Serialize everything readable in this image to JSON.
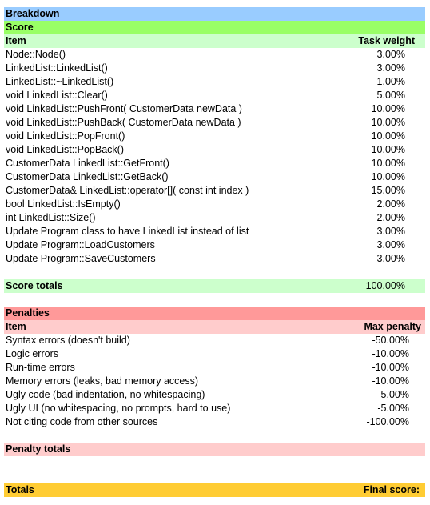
{
  "breakdown_title": "Breakdown",
  "score": {
    "title": "Score",
    "header": {
      "item": "Item",
      "weight": "Task weight"
    },
    "rows": [
      {
        "item": "Node::Node()",
        "weight": "3.00%"
      },
      {
        "item": "LinkedList::LinkedList()",
        "weight": "3.00%"
      },
      {
        "item": "LinkedList::~LinkedList()",
        "weight": "1.00%"
      },
      {
        "item": "void LinkedList::Clear()",
        "weight": "5.00%"
      },
      {
        "item": "void LinkedList::PushFront( CustomerData newData )",
        "weight": "10.00%"
      },
      {
        "item": "void LinkedList::PushBack( CustomerData newData )",
        "weight": "10.00%"
      },
      {
        "item": "void LinkedList::PopFront()",
        "weight": "10.00%"
      },
      {
        "item": "void LinkedList::PopBack()",
        "weight": "10.00%"
      },
      {
        "item": "CustomerData LinkedList::GetFront()",
        "weight": "10.00%"
      },
      {
        "item": "CustomerData LinkedList::GetBack()",
        "weight": "10.00%"
      },
      {
        "item": "CustomerData& LinkedList::operator[]( const int index )",
        "weight": "15.00%"
      },
      {
        "item": "bool LinkedList::IsEmpty()",
        "weight": "2.00%"
      },
      {
        "item": "int LinkedList::Size()",
        "weight": "2.00%"
      },
      {
        "item": "Update Program class to have LinkedList instead of list",
        "weight": "3.00%"
      },
      {
        "item": "Update Program::LoadCustomers",
        "weight": "3.00%"
      },
      {
        "item": "Update Program::SaveCustomers",
        "weight": "3.00%"
      }
    ],
    "totals_label": "Score totals",
    "totals_value": "100.00%"
  },
  "penalties": {
    "title": "Penalties",
    "header": {
      "item": "Item",
      "max": "Max penalty"
    },
    "rows": [
      {
        "item": "Syntax errors (doesn't build)",
        "max": "-50.00%"
      },
      {
        "item": "Logic errors",
        "max": "-10.00%"
      },
      {
        "item": "Run-time errors",
        "max": "-10.00%"
      },
      {
        "item": "Memory errors (leaks, bad memory access)",
        "max": "-10.00%"
      },
      {
        "item": "Ugly code (bad indentation, no whitespacing)",
        "max": "-5.00%"
      },
      {
        "item": "Ugly UI (no whitespacing, no prompts, hard to use)",
        "max": "-5.00%"
      },
      {
        "item": "Not citing code from other sources",
        "max": "-100.00%"
      }
    ],
    "totals_label": "Penalty totals"
  },
  "totals": {
    "label": "Totals",
    "final_score_label": "Final score:"
  },
  "colors": {
    "breakdown": "#99ccff",
    "score": "#99ff66",
    "score_light": "#ccffcc",
    "penalties": "#ff9999",
    "penalties_light": "#ffcccc",
    "totals": "#ffcc33"
  }
}
